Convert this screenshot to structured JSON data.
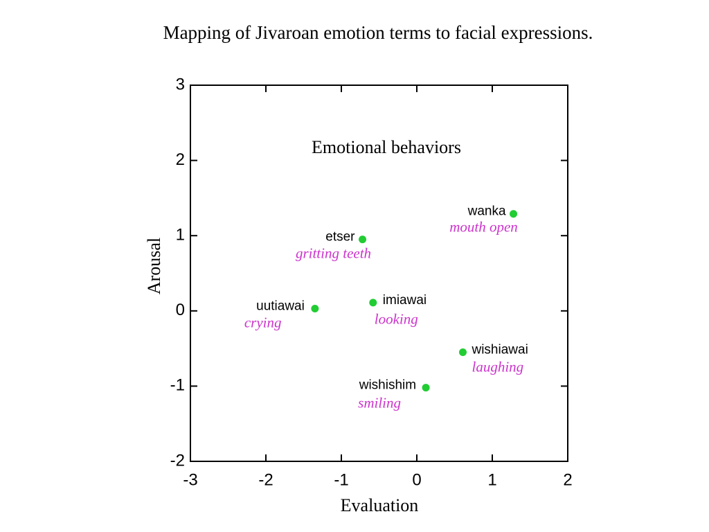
{
  "chart_data": {
    "type": "scatter",
    "title": "Mapping of Jivaroan emotion terms to facial expressions.",
    "annotation": "Emotional behaviors",
    "x_label": "Evaluation",
    "y_label": "Arousal",
    "xlim": [
      -3,
      2
    ],
    "ylim": [
      -2,
      3
    ],
    "xticks": [
      -3,
      -2,
      -1,
      0,
      1,
      2
    ],
    "yticks": [
      -2,
      -1,
      0,
      1,
      2,
      3
    ],
    "series": [
      {
        "color": "#22cc33",
        "x": [
          1.28,
          -0.72,
          -1.35,
          -0.58,
          0.61,
          0.12
        ],
        "values": [
          1.29,
          0.95,
          0.03,
          0.11,
          -0.55,
          -1.02
        ],
        "point_labels": [
          "wanka",
          "etser",
          "uutiawai",
          "imiawai",
          "wishiawai",
          "wishishim"
        ],
        "point_descriptions": [
          "mouth open",
          "gritting teeth",
          "crying",
          "looking",
          "laughing",
          "smiling"
        ],
        "description_color": "#cc33cc"
      }
    ]
  }
}
